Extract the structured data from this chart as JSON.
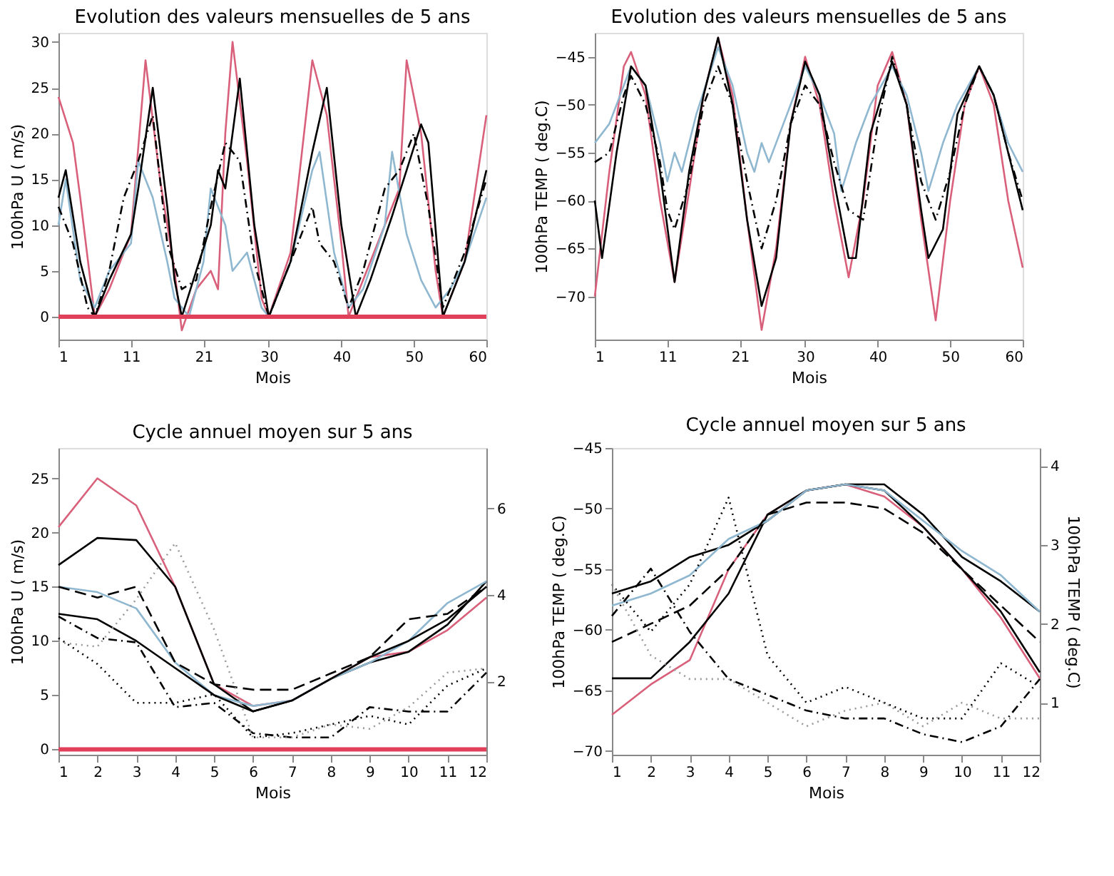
{
  "chart_data": [
    {
      "type": "line",
      "title": "Evolution des valeurs mensuelles de 5 ans",
      "xlabel": "Mois",
      "ylabel": "100hPa U ( m/s)",
      "xlim": [
        1,
        60
      ],
      "xticks": [
        1,
        11,
        21,
        30,
        40,
        50,
        60
      ],
      "ylim": [
        -2.5,
        31
      ],
      "yticks": [
        0,
        5,
        10,
        15,
        20,
        25,
        30
      ],
      "grid": false,
      "legend": false,
      "marker": "none",
      "ref_lines": [
        {
          "axis": "y",
          "value": 0,
          "color": "#e0405a"
        }
      ],
      "series": [
        {
          "color": "#d9607a",
          "line_style": "solid",
          "x": [
            1,
            3,
            4,
            6,
            8,
            11,
            13,
            15,
            17,
            18,
            20,
            22,
            23,
            24,
            25,
            27,
            29,
            30,
            33,
            36,
            38,
            40,
            41,
            43,
            46,
            48,
            49,
            51,
            53,
            54,
            57,
            60
          ],
          "values": [
            24,
            19,
            13,
            0,
            3,
            9,
            28,
            15,
            5,
            -1.5,
            3,
            5,
            3,
            20,
            30,
            17,
            2,
            0,
            7,
            28,
            22,
            8,
            0,
            4,
            10,
            14,
            28,
            20,
            5,
            0,
            6,
            22
          ]
        },
        {
          "color": "#8fb8d0",
          "line_style": "solid",
          "x": [
            1,
            2,
            4,
            6,
            8,
            11,
            12,
            14,
            16,
            17,
            19,
            21,
            22,
            24,
            25,
            27,
            29,
            30,
            33,
            36,
            37,
            39,
            41,
            43,
            46,
            47,
            49,
            51,
            53,
            55,
            57,
            60
          ],
          "values": [
            10,
            15,
            4,
            1,
            5,
            8,
            17,
            13,
            6,
            2,
            0,
            6,
            14,
            10,
            5,
            7,
            1,
            0,
            6,
            16,
            18,
            7,
            1,
            3,
            10,
            18,
            9,
            4,
            1,
            3,
            6,
            13
          ]
        },
        {
          "color": "#000000",
          "line_style": "solid",
          "x": [
            1,
            2,
            4,
            6,
            8,
            11,
            12,
            14,
            16,
            17,
            18,
            20,
            22,
            23,
            24,
            26,
            28,
            30,
            33,
            36,
            38,
            40,
            42,
            44,
            47,
            49,
            51,
            52,
            54,
            57,
            60
          ],
          "values": [
            13,
            16,
            6,
            0,
            4,
            9,
            14,
            25,
            12,
            4,
            0,
            5,
            10,
            16,
            14,
            26,
            10,
            0,
            6,
            18,
            25,
            10,
            0,
            4,
            11,
            16,
            21,
            19,
            0,
            6,
            16
          ]
        },
        {
          "color": "#000000",
          "line_style": "dashdot",
          "x": [
            1,
            3,
            5,
            6,
            8,
            10,
            12,
            14,
            16,
            18,
            20,
            22,
            24,
            26,
            28,
            30,
            33,
            36,
            37,
            39,
            41,
            43,
            46,
            48,
            50,
            52,
            54,
            57,
            60
          ],
          "values": [
            12,
            8,
            1,
            0,
            5,
            13,
            17,
            22,
            8,
            3,
            4,
            12,
            19,
            17,
            6,
            0,
            6,
            12,
            8,
            6,
            1,
            5,
            14,
            16,
            20,
            12,
            1,
            7,
            15
          ]
        }
      ]
    },
    {
      "type": "line",
      "title": "Evolution des valeurs mensuelles de 5 ans",
      "xlabel": "Mois",
      "ylabel": "100hPa TEMP ( deg.C)",
      "xlim": [
        1,
        60
      ],
      "xticks": [
        1,
        11,
        21,
        30,
        40,
        50,
        60
      ],
      "ylim": [
        -74.5,
        -42.5
      ],
      "yticks": [
        -45,
        -50,
        -55,
        -60,
        -65,
        -70
      ],
      "grid": false,
      "legend": false,
      "marker": "none",
      "series": [
        {
          "color": "#d9607a",
          "line_style": "solid",
          "x": [
            1,
            3,
            5,
            6,
            8,
            10,
            12,
            14,
            16,
            18,
            20,
            22,
            24,
            26,
            28,
            30,
            32,
            34,
            36,
            38,
            40,
            42,
            44,
            46,
            48,
            50,
            52,
            54,
            56,
            58,
            60
          ],
          "values": [
            -70,
            -57,
            -46,
            -44.5,
            -49,
            -60,
            -68.5,
            -59,
            -49,
            -43,
            -49,
            -62,
            -73.5,
            -65,
            -52,
            -45,
            -50,
            -60,
            -68,
            -60,
            -48,
            -44.5,
            -50,
            -62,
            -72.5,
            -60,
            -50,
            -46,
            -50,
            -60,
            -67
          ]
        },
        {
          "color": "#8fb8d0",
          "line_style": "solid",
          "x": [
            1,
            3,
            5,
            6,
            8,
            10,
            11,
            12,
            13,
            15,
            18,
            20,
            22,
            23,
            24,
            25,
            27,
            30,
            32,
            34,
            35,
            37,
            39,
            42,
            44,
            46,
            47,
            49,
            51,
            54,
            56,
            58,
            60
          ],
          "values": [
            -54,
            -52,
            -48,
            -46,
            -48,
            -54,
            -58,
            -55,
            -57,
            -51,
            -44,
            -48,
            -55,
            -57,
            -54,
            -56,
            -52,
            -46,
            -49,
            -53,
            -59,
            -54,
            -50,
            -46,
            -49,
            -55,
            -59,
            -54,
            -50,
            -46,
            -49,
            -54,
            -57
          ]
        },
        {
          "color": "#000000",
          "line_style": "solid",
          "x": [
            1,
            2,
            4,
            6,
            8,
            10,
            12,
            14,
            16,
            18,
            20,
            22,
            24,
            26,
            28,
            30,
            32,
            34,
            36,
            37,
            39,
            42,
            44,
            46,
            47,
            49,
            51,
            54,
            56,
            58,
            60
          ],
          "values": [
            -60,
            -66,
            -55,
            -46,
            -48,
            -57,
            -68.5,
            -57,
            -49,
            -43,
            -50,
            -62,
            -71,
            -66,
            -52,
            -45.5,
            -49,
            -58,
            -66,
            -66,
            -53,
            -45.5,
            -50,
            -61,
            -66,
            -63,
            -51,
            -46,
            -49,
            -55,
            -61
          ]
        },
        {
          "color": "#000000",
          "line_style": "dashdot",
          "x": [
            1,
            3,
            5,
            6,
            8,
            10,
            11,
            12,
            14,
            16,
            18,
            20,
            22,
            24,
            26,
            28,
            30,
            32,
            34,
            36,
            38,
            40,
            42,
            44,
            46,
            48,
            50,
            52,
            54,
            56,
            58,
            60
          ],
          "values": [
            -56,
            -55,
            -49,
            -47,
            -50,
            -56,
            -61,
            -63,
            -58,
            -50,
            -46,
            -50,
            -58,
            -65,
            -60,
            -52,
            -48,
            -50,
            -56,
            -61,
            -62,
            -52,
            -45,
            -50,
            -58,
            -62,
            -57,
            -50,
            -46,
            -49,
            -55,
            -60
          ]
        }
      ]
    },
    {
      "type": "line",
      "title": "Cycle annuel moyen sur 5 ans",
      "xlabel": "Mois",
      "ylabel": "100hPa U ( m/s)",
      "x": [
        1,
        2,
        3,
        4,
        5,
        6,
        7,
        8,
        9,
        10,
        11,
        12
      ],
      "xlim": [
        1,
        12
      ],
      "xticks": [
        1,
        2,
        3,
        4,
        5,
        6,
        7,
        8,
        9,
        10,
        11,
        12
      ],
      "ylim": [
        -0.5,
        27.8
      ],
      "yticks": [
        0,
        5,
        10,
        15,
        20,
        25
      ],
      "y2lim": [
        0.3,
        7.4
      ],
      "y2ticks": [
        2,
        4,
        6
      ],
      "grid": false,
      "legend": false,
      "marker": "none",
      "ref_lines": [
        {
          "axis": "y",
          "value": 0,
          "color": "#e0405a"
        }
      ],
      "series": [
        {
          "color": "#d9607a",
          "line_style": "solid",
          "values": [
            20.5,
            25,
            22.5,
            15,
            6,
            4,
            4.5,
            6.5,
            8.5,
            9,
            11,
            14
          ]
        },
        {
          "color": "#000000",
          "line_style": "solid",
          "values": [
            17,
            19.5,
            19.3,
            15,
            6,
            3.5,
            4.5,
            6.5,
            8,
            9,
            11.5,
            15.5
          ]
        },
        {
          "color": "#8fb8d0",
          "line_style": "solid",
          "values": [
            15,
            14.5,
            13,
            8,
            5,
            4,
            4.5,
            6.5,
            8,
            10,
            13.5,
            15.5
          ]
        },
        {
          "color": "#000000",
          "line_style": "solid",
          "values": [
            12.5,
            12,
            10,
            7.5,
            5,
            3.5,
            4.5,
            6.5,
            8.5,
            10,
            12,
            15
          ]
        },
        {
          "color": "#000000",
          "line_style": "dashed",
          "values": [
            15,
            14,
            15,
            8,
            6,
            5.5,
            5.5,
            7,
            8.5,
            12,
            12.5,
            15
          ]
        },
        {
          "color": "#000000",
          "line_style": "dashdot",
          "axis": "y2",
          "values": [
            3.5,
            3.0,
            2.9,
            1.4,
            1.5,
            0.8,
            0.7,
            0.7,
            1.4,
            1.3,
            1.3,
            2.2
          ]
        },
        {
          "color": "#000000",
          "line_style": "dotted",
          "axis": "y2",
          "values": [
            3.0,
            2.4,
            1.5,
            1.5,
            1.7,
            0.7,
            0.8,
            1.0,
            1.2,
            1.0,
            1.9,
            2.3
          ]
        },
        {
          "color": "#999999",
          "line_style": "dotted",
          "axis": "y2",
          "values": [
            2.9,
            2.8,
            3.9,
            5.2,
            3.2,
            0.7,
            0.7,
            1.0,
            0.9,
            1.4,
            2.2,
            2.3
          ]
        }
      ]
    },
    {
      "type": "line",
      "title": "Cycle annuel moyen sur 5 ans",
      "xlabel": "Mois",
      "ylabel": "100hPa TEMP ( deg.C)",
      "y2label": "100hPa TEMP ( deg.C)",
      "x": [
        1,
        2,
        3,
        4,
        5,
        6,
        7,
        8,
        9,
        10,
        11,
        12
      ],
      "xlim": [
        1,
        12
      ],
      "xticks": [
        1,
        2,
        3,
        4,
        5,
        6,
        7,
        8,
        9,
        10,
        11,
        12
      ],
      "ylim": [
        -70.3,
        -45
      ],
      "yticks": [
        -45,
        -50,
        -55,
        -60,
        -65,
        -70
      ],
      "y2lim": [
        0.34,
        4.23
      ],
      "y2ticks": [
        1,
        2,
        3,
        4
      ],
      "grid": false,
      "legend": false,
      "marker": "none",
      "series": [
        {
          "color": "#d9607a",
          "line_style": "solid",
          "values": [
            -67,
            -64.5,
            -62.5,
            -55,
            -50.5,
            -48.5,
            -48,
            -49,
            -51.5,
            -55,
            -59,
            -64
          ]
        },
        {
          "color": "#000000",
          "line_style": "solid",
          "values": [
            -64,
            -64,
            -61,
            -57,
            -50.5,
            -48.5,
            -48,
            -48.5,
            -51.5,
            -55,
            -58.5,
            -63.5
          ]
        },
        {
          "color": "#000000",
          "line_style": "solid",
          "values": [
            -57,
            -56,
            -54,
            -53,
            -51,
            -48.5,
            -48,
            -48,
            -50.5,
            -54,
            -56,
            -58.5
          ]
        },
        {
          "color": "#8fb8d0",
          "line_style": "solid",
          "values": [
            -58,
            -57,
            -55.5,
            -52.5,
            -51,
            -48.5,
            -48,
            -48.5,
            -51,
            -53.5,
            -55.5,
            -58.5
          ]
        },
        {
          "color": "#000000",
          "line_style": "dashed",
          "values": [
            -61,
            -59.5,
            -58,
            -55,
            -50.5,
            -49.5,
            -49.5,
            -50,
            -52,
            -55,
            -58,
            -61
          ]
        },
        {
          "color": "#000000",
          "line_style": "dashdot",
          "axis": "y2",
          "values": [
            2.1,
            2.7,
            1.9,
            1.3,
            1.1,
            0.9,
            0.8,
            0.8,
            0.6,
            0.5,
            0.7,
            1.3
          ]
        },
        {
          "color": "#000000",
          "line_style": "dotted",
          "axis": "y2",
          "values": [
            2.5,
            1.9,
            2.5,
            3.6,
            1.6,
            1.0,
            1.2,
            1.0,
            0.8,
            0.8,
            1.5,
            1.2
          ]
        },
        {
          "color": "#999999",
          "line_style": "dotted",
          "axis": "y2",
          "values": [
            2.5,
            1.6,
            1.3,
            1.3,
            1.0,
            0.7,
            0.9,
            1.0,
            0.7,
            1.0,
            0.8,
            0.8
          ]
        }
      ]
    }
  ]
}
